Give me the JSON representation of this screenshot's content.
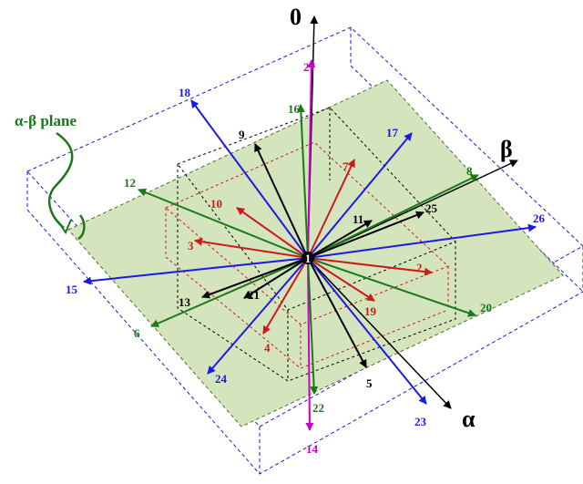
{
  "diagram": {
    "axes": {
      "zero": "0",
      "alpha": "α",
      "beta": "β"
    },
    "plane_label": "α-β plane",
    "center_label": "1",
    "vectors": [
      {
        "label": "27",
        "color": "#cc00cc"
      },
      {
        "label": "14",
        "color": "#cc00cc"
      },
      {
        "label": "18",
        "color": "#1a1ae6"
      },
      {
        "label": "17",
        "color": "#1a1ae6"
      },
      {
        "label": "26",
        "color": "#1a1ae6"
      },
      {
        "label": "15",
        "color": "#1a1ae6"
      },
      {
        "label": "24",
        "color": "#1a1ae6"
      },
      {
        "label": "23",
        "color": "#1a1ae6"
      },
      {
        "label": "16",
        "color": "#1a7a1a"
      },
      {
        "label": "12",
        "color": "#1a7a1a"
      },
      {
        "label": "8",
        "color": "#1a7a1a"
      },
      {
        "label": "6",
        "color": "#1a7a1a"
      },
      {
        "label": "20",
        "color": "#1a7a1a"
      },
      {
        "label": "22",
        "color": "#1a7a1a"
      },
      {
        "label": "9",
        "color": "#000000"
      },
      {
        "label": "25",
        "color": "#000000"
      },
      {
        "label": "11",
        "color": "#000000"
      },
      {
        "label": "13",
        "color": "#000000"
      },
      {
        "label": "21",
        "color": "#000000"
      },
      {
        "label": "5",
        "color": "#000000"
      },
      {
        "label": "7",
        "color": "#cc1a1a"
      },
      {
        "label": "10",
        "color": "#cc1a1a"
      },
      {
        "label": "3",
        "color": "#cc1a1a"
      },
      {
        "label": "2",
        "color": "#cc1a1a"
      },
      {
        "label": "19",
        "color": "#cc1a1a"
      },
      {
        "label": "4",
        "color": "#cc1a1a"
      }
    ],
    "colors": {
      "plane_fill": "#d4e4bc",
      "plane_stroke": "#556b2f",
      "outer_box": "#1a1ae6",
      "middle_box": "#000000",
      "inner_box": "#cc1a1a",
      "axis": "#000000",
      "plane_pointer": "#1a7a1a"
    }
  }
}
